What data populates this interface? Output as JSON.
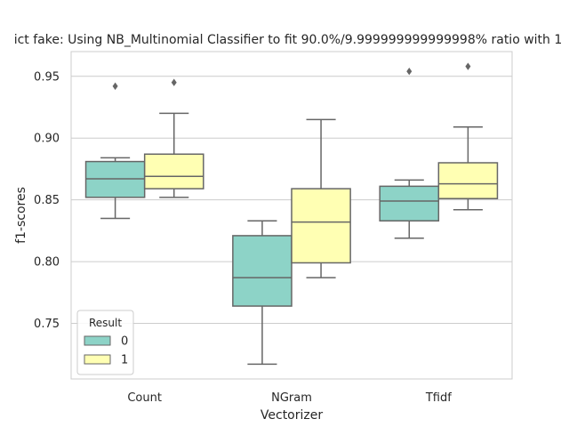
{
  "chart_data": {
    "type": "box",
    "title": "ict fake: Using NB_Multinomial Classifier to fit 90.0%/9.999999999999998% ratio with 1",
    "xlabel": "Vectorizer",
    "ylabel": "f1-scores",
    "categories": [
      "Count",
      "NGram",
      "Tfidf"
    ],
    "ylim": [
      0.705,
      0.97
    ],
    "yticks": [
      0.75,
      0.8,
      0.85,
      0.9,
      0.95
    ],
    "ytick_labels": [
      "0.75",
      "0.80",
      "0.85",
      "0.90",
      "0.95"
    ],
    "grid": "horizontal",
    "legend": {
      "title": "Result",
      "placement": "lower-left"
    },
    "series": [
      {
        "name": "0",
        "color": "#8dd3c7",
        "boxes": [
          {
            "whislo": 0.835,
            "q1": 0.852,
            "med": 0.867,
            "q3": 0.881,
            "whishi": 0.884,
            "fliers": [
              0.942
            ]
          },
          {
            "whislo": 0.717,
            "q1": 0.764,
            "med": 0.787,
            "q3": 0.821,
            "whishi": 0.833,
            "fliers": []
          },
          {
            "whislo": 0.819,
            "q1": 0.833,
            "med": 0.849,
            "q3": 0.861,
            "whishi": 0.866,
            "fliers": [
              0.954
            ]
          }
        ]
      },
      {
        "name": "1",
        "color": "#ffffb3",
        "boxes": [
          {
            "whislo": 0.852,
            "q1": 0.859,
            "med": 0.869,
            "q3": 0.887,
            "whishi": 0.92,
            "fliers": [
              0.945
            ]
          },
          {
            "whislo": 0.787,
            "q1": 0.799,
            "med": 0.832,
            "q3": 0.859,
            "whishi": 0.915,
            "fliers": []
          },
          {
            "whislo": 0.842,
            "q1": 0.851,
            "med": 0.863,
            "q3": 0.88,
            "whishi": 0.909,
            "fliers": [
              0.958
            ]
          }
        ]
      }
    ],
    "style": {
      "box_edge": "#666666",
      "grid": "#cccccc",
      "frame": "#cccccc"
    }
  }
}
